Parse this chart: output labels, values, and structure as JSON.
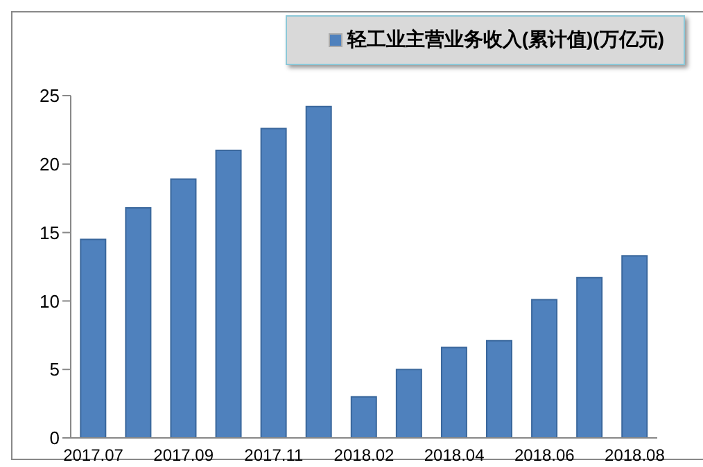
{
  "chart_data": {
    "type": "bar",
    "categories": [
      "2017.07",
      null,
      "2017.09",
      null,
      "2017.11",
      null,
      "2018.02",
      null,
      "2018.04",
      null,
      "2018.06",
      null,
      "2018.08"
    ],
    "series": [
      {
        "name": "轻工业主营业务收入(累计值)(万亿元)",
        "color": "#4f81bd",
        "values": [
          14.5,
          16.8,
          18.9,
          21.0,
          22.6,
          24.2,
          3.0,
          5.0,
          6.6,
          7.1,
          10.1,
          11.7,
          13.3
        ]
      }
    ],
    "ylim": [
      0,
      25
    ],
    "yticks": [
      0,
      5,
      10,
      15,
      20,
      25
    ],
    "grid": false,
    "legend": "top right"
  }
}
